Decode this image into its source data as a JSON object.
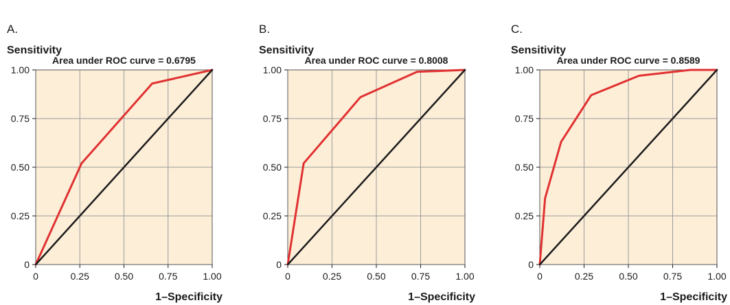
{
  "chart_data": [
    {
      "type": "line",
      "panel_label": "A.",
      "annotation": "Area under ROC curve = 0.6795",
      "ylabel": "Sensitivity",
      "xlabel": "1–Specificity",
      "xlim": [
        0,
        1
      ],
      "ylim": [
        0,
        1
      ],
      "xticks": [
        "0",
        "0.25",
        "0.50",
        "0.75",
        "1.00"
      ],
      "yticks": [
        "0",
        "0.25",
        "0.50",
        "0.75",
        "1.00"
      ],
      "grid": true,
      "series": [
        {
          "role": "roc",
          "color": "#e03131",
          "points": [
            [
              0,
              0
            ],
            [
              0.26,
              0.52
            ],
            [
              0.66,
              0.93
            ],
            [
              1.0,
              1.0
            ]
          ]
        },
        {
          "role": "reference",
          "color": "#1a1a1a",
          "points": [
            [
              0,
              0
            ],
            [
              1,
              1
            ]
          ]
        }
      ]
    },
    {
      "type": "line",
      "panel_label": "B.",
      "annotation": "Area under ROC curve = 0.8008",
      "ylabel": "Sensitivity",
      "xlabel": "1–Specificity",
      "xlim": [
        0,
        1
      ],
      "ylim": [
        0,
        1
      ],
      "xticks": [
        "0",
        "0.25",
        "0.50",
        "0.75",
        "1.00"
      ],
      "yticks": [
        "0",
        "0.25",
        "0.50",
        "0.75",
        "1.00"
      ],
      "grid": true,
      "series": [
        {
          "role": "roc",
          "color": "#e03131",
          "points": [
            [
              0,
              0
            ],
            [
              0.09,
              0.52
            ],
            [
              0.41,
              0.86
            ],
            [
              0.73,
              0.99
            ],
            [
              1.0,
              1.0
            ]
          ]
        },
        {
          "role": "reference",
          "color": "#1a1a1a",
          "points": [
            [
              0,
              0
            ],
            [
              1,
              1
            ]
          ]
        }
      ]
    },
    {
      "type": "line",
      "panel_label": "C.",
      "annotation": "Area under ROC curve = 0.8589",
      "ylabel": "Sensitivity",
      "xlabel": "1–Specificity",
      "xlim": [
        0,
        1
      ],
      "ylim": [
        0,
        1
      ],
      "xticks": [
        "0",
        "0.25",
        "0.50",
        "0.75",
        "1.00"
      ],
      "yticks": [
        "0",
        "0.25",
        "0.50",
        "0.75",
        "1.00"
      ],
      "grid": true,
      "series": [
        {
          "role": "roc",
          "color": "#e03131",
          "points": [
            [
              0,
              0
            ],
            [
              0.03,
              0.34
            ],
            [
              0.12,
              0.63
            ],
            [
              0.29,
              0.87
            ],
            [
              0.56,
              0.97
            ],
            [
              0.85,
              1.0
            ],
            [
              1.0,
              1.0
            ]
          ]
        },
        {
          "role": "reference",
          "color": "#1a1a1a",
          "points": [
            [
              0,
              0
            ],
            [
              1,
              1
            ]
          ]
        }
      ]
    }
  ],
  "style": {
    "plot_bg": "#fdeed8",
    "grid_color": "#9a9a9a",
    "frame_color": "#555555"
  }
}
